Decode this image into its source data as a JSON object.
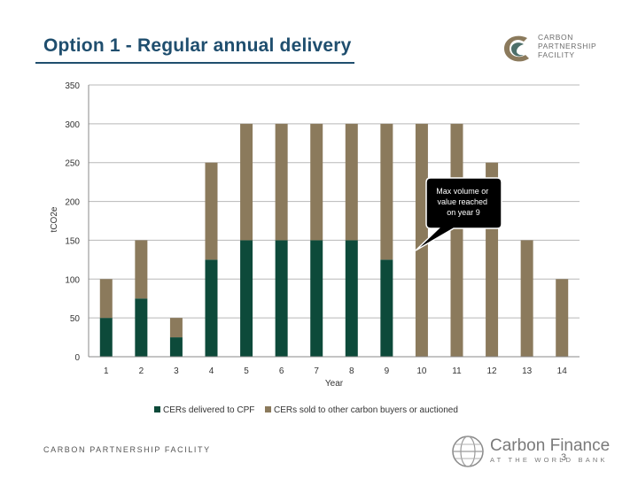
{
  "slide": {
    "title": "Option 1 - Regular annual delivery",
    "org_logo_lines": [
      "CARBON",
      "PARTNERSHIP",
      "FACILITY"
    ],
    "footer_left": "CARBON PARTNERSHIP FACILITY",
    "footer_brand": "Carbon Finance",
    "footer_brand_sub": "AT THE WORLD BANK",
    "page_number": "3"
  },
  "chart_data": {
    "type": "bar",
    "stacked": true,
    "title": "",
    "xlabel": "Year",
    "ylabel": "tCO2e",
    "ylim": [
      0,
      350
    ],
    "yticks": [
      0,
      50,
      100,
      150,
      200,
      250,
      300,
      350
    ],
    "categories": [
      "1",
      "2",
      "3",
      "4",
      "5",
      "6",
      "7",
      "8",
      "9",
      "10",
      "11",
      "12",
      "13",
      "14"
    ],
    "series": [
      {
        "name": "CERs delivered to CPF",
        "color": "#0d4a3a",
        "values": [
          50,
          75,
          25,
          125,
          150,
          150,
          150,
          150,
          125,
          0,
          0,
          0,
          0,
          0
        ]
      },
      {
        "name": "CERs sold to other carbon buyers or auctioned",
        "color": "#8b7a5c",
        "values": [
          50,
          75,
          25,
          125,
          150,
          150,
          150,
          150,
          175,
          300,
          300,
          250,
          150,
          100
        ]
      }
    ],
    "gridlines": true,
    "legend": "bottom",
    "annotation": {
      "text": "Max volume or value reached on year 9"
    }
  }
}
